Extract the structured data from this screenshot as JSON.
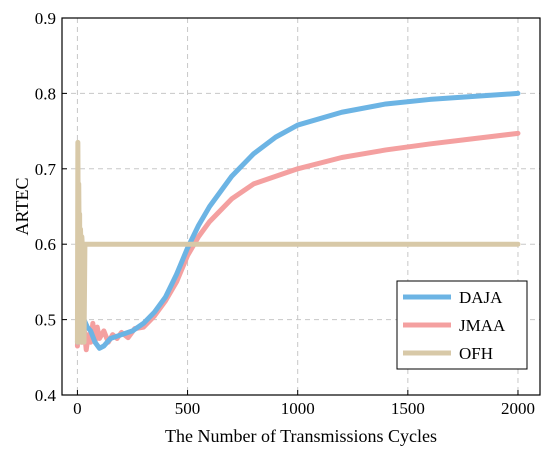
{
  "chart_data": {
    "type": "line",
    "title": "",
    "xlabel": "The Number of Transmissions Cycles",
    "ylabel": "ARTEC",
    "xlim": [
      -70,
      2100
    ],
    "ylim": [
      0.4,
      0.9
    ],
    "xticks": [
      0,
      500,
      1000,
      1500,
      2000
    ],
    "yticks": [
      0.4,
      0.5,
      0.6,
      0.7,
      0.8,
      0.9
    ],
    "xtick_labels": [
      "0",
      "500",
      "1000",
      "1500",
      "2000"
    ],
    "ytick_labels": [
      "0.4",
      "0.5",
      "0.6",
      "0.7",
      "0.8",
      "0.9"
    ],
    "grid": true,
    "legend_position": "bottom-right",
    "series": [
      {
        "name": "DAJA",
        "color": "#6cb4e4",
        "points": [
          [
            0,
            0.47
          ],
          [
            5,
            0.5
          ],
          [
            10,
            0.49
          ],
          [
            20,
            0.51
          ],
          [
            30,
            0.5
          ],
          [
            45,
            0.49
          ],
          [
            60,
            0.485
          ],
          [
            80,
            0.47
          ],
          [
            100,
            0.462
          ],
          [
            120,
            0.465
          ],
          [
            150,
            0.475
          ],
          [
            180,
            0.478
          ],
          [
            200,
            0.48
          ],
          [
            250,
            0.485
          ],
          [
            300,
            0.495
          ],
          [
            350,
            0.51
          ],
          [
            400,
            0.53
          ],
          [
            450,
            0.56
          ],
          [
            500,
            0.595
          ],
          [
            550,
            0.625
          ],
          [
            600,
            0.65
          ],
          [
            700,
            0.69
          ],
          [
            800,
            0.72
          ],
          [
            900,
            0.742
          ],
          [
            1000,
            0.758
          ],
          [
            1200,
            0.775
          ],
          [
            1400,
            0.786
          ],
          [
            1600,
            0.792
          ],
          [
            1800,
            0.796
          ],
          [
            2000,
            0.8
          ]
        ]
      },
      {
        "name": "JMAA",
        "color": "#f4a0a0",
        "points": [
          [
            0,
            0.465
          ],
          [
            5,
            0.51
          ],
          [
            10,
            0.48
          ],
          [
            15,
            0.5
          ],
          [
            20,
            0.47
          ],
          [
            30,
            0.49
          ],
          [
            40,
            0.46
          ],
          [
            50,
            0.48
          ],
          [
            60,
            0.47
          ],
          [
            70,
            0.495
          ],
          [
            80,
            0.47
          ],
          [
            90,
            0.49
          ],
          [
            100,
            0.475
          ],
          [
            120,
            0.485
          ],
          [
            140,
            0.47
          ],
          [
            160,
            0.48
          ],
          [
            180,
            0.475
          ],
          [
            200,
            0.483
          ],
          [
            230,
            0.476
          ],
          [
            260,
            0.488
          ],
          [
            300,
            0.49
          ],
          [
            350,
            0.505
          ],
          [
            400,
            0.525
          ],
          [
            450,
            0.55
          ],
          [
            500,
            0.585
          ],
          [
            550,
            0.61
          ],
          [
            600,
            0.63
          ],
          [
            700,
            0.66
          ],
          [
            800,
            0.68
          ],
          [
            1000,
            0.7
          ],
          [
            1200,
            0.715
          ],
          [
            1400,
            0.725
          ],
          [
            1600,
            0.733
          ],
          [
            1800,
            0.74
          ],
          [
            2000,
            0.747
          ]
        ]
      },
      {
        "name": "OFH",
        "color": "#d8c9a8",
        "points": [
          [
            0,
            0.47
          ],
          [
            2,
            0.735
          ],
          [
            4,
            0.6
          ],
          [
            6,
            0.68
          ],
          [
            8,
            0.6
          ],
          [
            10,
            0.64
          ],
          [
            12,
            0.47
          ],
          [
            14,
            0.62
          ],
          [
            16,
            0.6
          ],
          [
            18,
            0.5
          ],
          [
            20,
            0.61
          ],
          [
            22,
            0.6
          ],
          [
            25,
            0.56
          ],
          [
            28,
            0.6
          ],
          [
            30,
            0.47
          ],
          [
            34,
            0.6
          ],
          [
            40,
            0.6
          ],
          [
            1000,
            0.6
          ],
          [
            2000,
            0.6
          ]
        ]
      }
    ]
  }
}
